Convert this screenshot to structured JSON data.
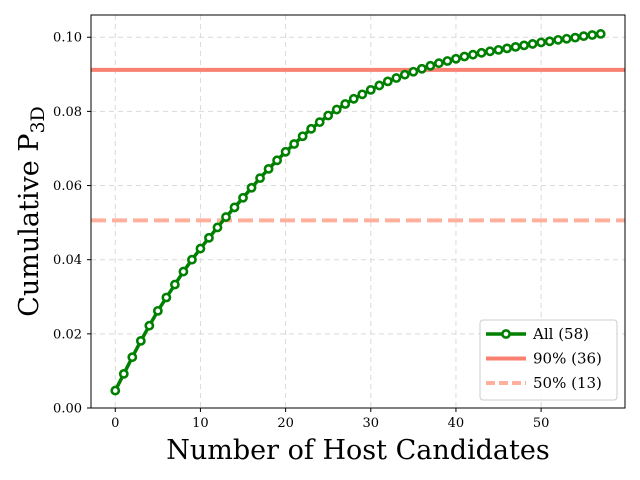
{
  "chart_data": {
    "type": "line",
    "xlabel": "Number of Host Candidates",
    "ylabel": "Cumulative P",
    "ylabel_subscript": "3D",
    "xlim": [
      -2.85,
      59.85
    ],
    "ylim": [
      0.0,
      0.106
    ],
    "x_ticks": [
      0,
      10,
      20,
      30,
      40,
      50
    ],
    "x_tick_labels": [
      "0",
      "10",
      "20",
      "30",
      "40",
      "50"
    ],
    "y_ticks": [
      0.0,
      0.02,
      0.04,
      0.06,
      0.08,
      0.1
    ],
    "y_tick_labels": [
      "0.00",
      "0.02",
      "0.04",
      "0.06",
      "0.08",
      "0.10"
    ],
    "grid": true,
    "legend_position": "lower-right",
    "colors": {
      "series": "#008000",
      "line_90": "#fa8072",
      "line_50": "#ffb09c"
    },
    "series": [
      {
        "name": "All (58)",
        "style": "solid-with-circle-markers",
        "x": [
          0,
          1,
          2,
          3,
          4,
          5,
          6,
          7,
          8,
          9,
          10,
          11,
          12,
          13,
          14,
          15,
          16,
          17,
          18,
          19,
          20,
          21,
          22,
          23,
          24,
          25,
          26,
          27,
          28,
          29,
          30,
          31,
          32,
          33,
          34,
          35,
          36,
          37,
          38,
          39,
          40,
          41,
          42,
          43,
          44,
          45,
          46,
          47,
          48,
          49,
          50,
          51,
          52,
          53,
          54,
          55,
          56,
          57
        ],
        "values": [
          0.0047,
          0.0092,
          0.0137,
          0.0181,
          0.0222,
          0.0262,
          0.0298,
          0.0333,
          0.0368,
          0.04,
          0.043,
          0.0459,
          0.0487,
          0.0515,
          0.0541,
          0.0567,
          0.0594,
          0.062,
          0.0645,
          0.0668,
          0.0691,
          0.0712,
          0.0733,
          0.0753,
          0.0771,
          0.0789,
          0.0805,
          0.082,
          0.0834,
          0.0846,
          0.0858,
          0.087,
          0.0881,
          0.089,
          0.0899,
          0.0907,
          0.0915,
          0.0923,
          0.093,
          0.0936,
          0.0942,
          0.0948,
          0.0953,
          0.0958,
          0.0962,
          0.0966,
          0.097,
          0.0974,
          0.0978,
          0.0982,
          0.0986,
          0.0989,
          0.0993,
          0.0996,
          0.0999,
          0.1003,
          0.1006,
          0.1009
        ]
      }
    ],
    "hlines": [
      {
        "name": "90% (36)",
        "y": 0.0912,
        "style": "solid"
      },
      {
        "name": "50% (13)",
        "y": 0.0506,
        "style": "dashed"
      }
    ]
  }
}
